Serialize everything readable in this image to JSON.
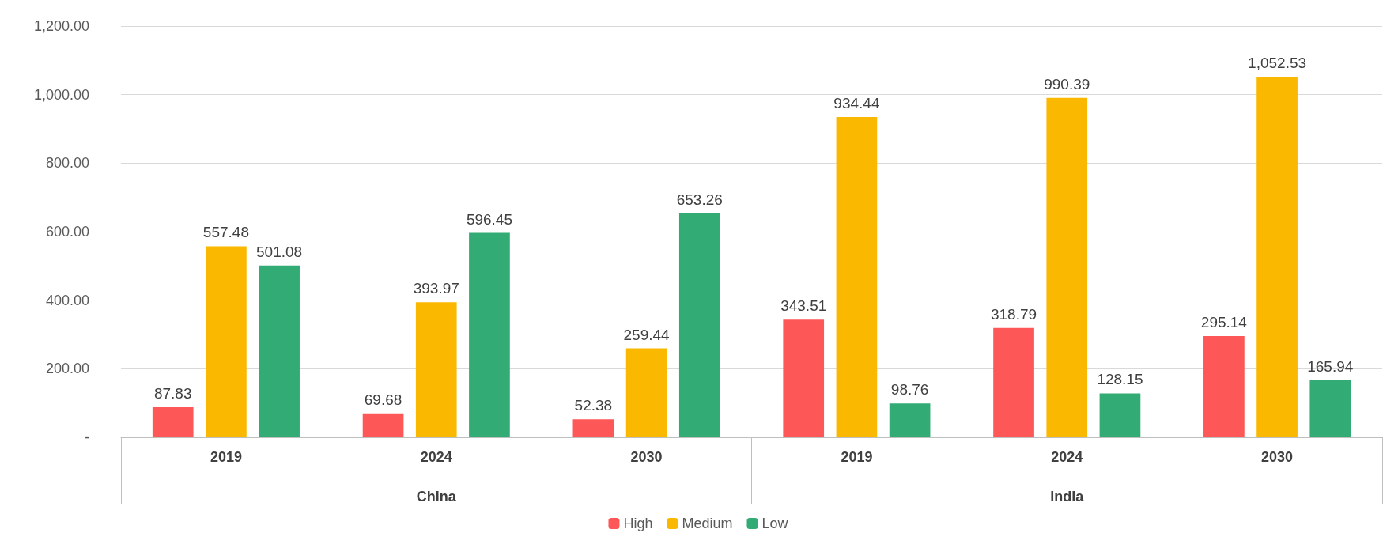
{
  "chart_data": {
    "type": "bar",
    "categories": [
      "2019",
      "2024",
      "2030",
      "2019",
      "2024",
      "2030"
    ],
    "annotations": [
      "China",
      "India"
    ],
    "series": [
      {
        "name": "High",
        "color": "#fe5757",
        "values": [
          87.83,
          69.68,
          52.38,
          343.51,
          318.79,
          295.14
        ],
        "value_labels": [
          "87.83",
          "69.68",
          "52.38",
          "343.51",
          "318.79",
          "295.14"
        ]
      },
      {
        "name": "Medium",
        "color": "#fab800",
        "values": [
          557.48,
          393.97,
          259.44,
          934.44,
          990.39,
          1052.53
        ],
        "value_labels": [
          "557.48",
          "393.97",
          "259.44",
          "934.44",
          "990.39",
          "1,052.53"
        ]
      },
      {
        "name": "Low",
        "color": "#32ab74",
        "values": [
          501.08,
          596.45,
          653.26,
          98.76,
          128.15,
          165.94
        ],
        "value_labels": [
          "501.08",
          "596.45",
          "653.26",
          "98.76",
          "128.15",
          "165.94"
        ]
      }
    ],
    "ylim": [
      0,
      1200
    ],
    "yticks": [
      {
        "value": 0,
        "label": "-"
      },
      {
        "value": 200,
        "label": "200.00"
      },
      {
        "value": 400,
        "label": "400.00"
      },
      {
        "value": 600,
        "label": "600.00"
      },
      {
        "value": 800,
        "label": "800.00"
      },
      {
        "value": 1000,
        "label": "1,000.00"
      },
      {
        "value": 1200,
        "label": "1,200.00"
      }
    ],
    "grid": "y",
    "legend": "bottom"
  }
}
